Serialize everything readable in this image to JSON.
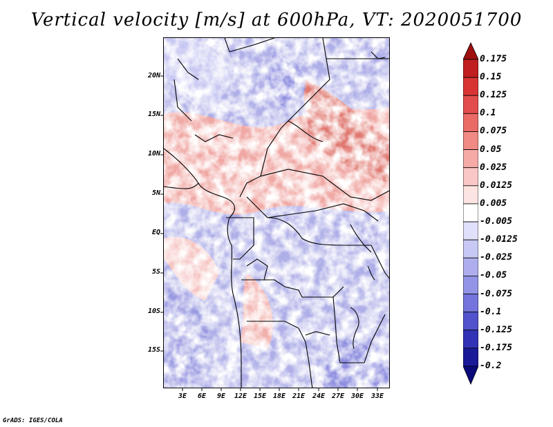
{
  "title": "Vertical velocity [m/s] at 600hPa, VT: 2020051700",
  "credit": "GrADS: IGES/COLA",
  "map": {
    "lon_range": [
      0,
      35
    ],
    "lat_range": [
      -20,
      25
    ],
    "lat_labels": [
      "20N",
      "15N",
      "10N",
      "5N",
      "EQ",
      "5S",
      "10S",
      "15S"
    ],
    "lat_values": [
      20,
      15,
      10,
      5,
      0,
      -5,
      -10,
      -15
    ],
    "lon_labels": [
      "3E",
      "6E",
      "9E",
      "12E",
      "15E",
      "18E",
      "21E",
      "24E",
      "27E",
      "30E",
      "33E"
    ],
    "lon_values": [
      3,
      6,
      9,
      12,
      15,
      18,
      21,
      24,
      27,
      30,
      33
    ]
  },
  "colorbar": {
    "labels": [
      "0.175",
      "0.15",
      "0.125",
      "0.1",
      "0.075",
      "0.05",
      "0.025",
      "0.0125",
      "0.005",
      "-0.005",
      "-0.0125",
      "-0.025",
      "-0.05",
      "-0.075",
      "-0.1",
      "-0.125",
      "-0.175",
      "-0.2"
    ],
    "colors": [
      "#a01010",
      "#c01e20",
      "#d83434",
      "#e24c4c",
      "#ea6a66",
      "#f08a84",
      "#f5aaa6",
      "#f9c8c6",
      "#fce4e2",
      "#ffffff",
      "#e0e0fa",
      "#c8c8f4",
      "#aeaeee",
      "#9494e6",
      "#7474dc",
      "#5252cc",
      "#3232b6",
      "#1a1a98",
      "#0a0a7a"
    ]
  }
}
